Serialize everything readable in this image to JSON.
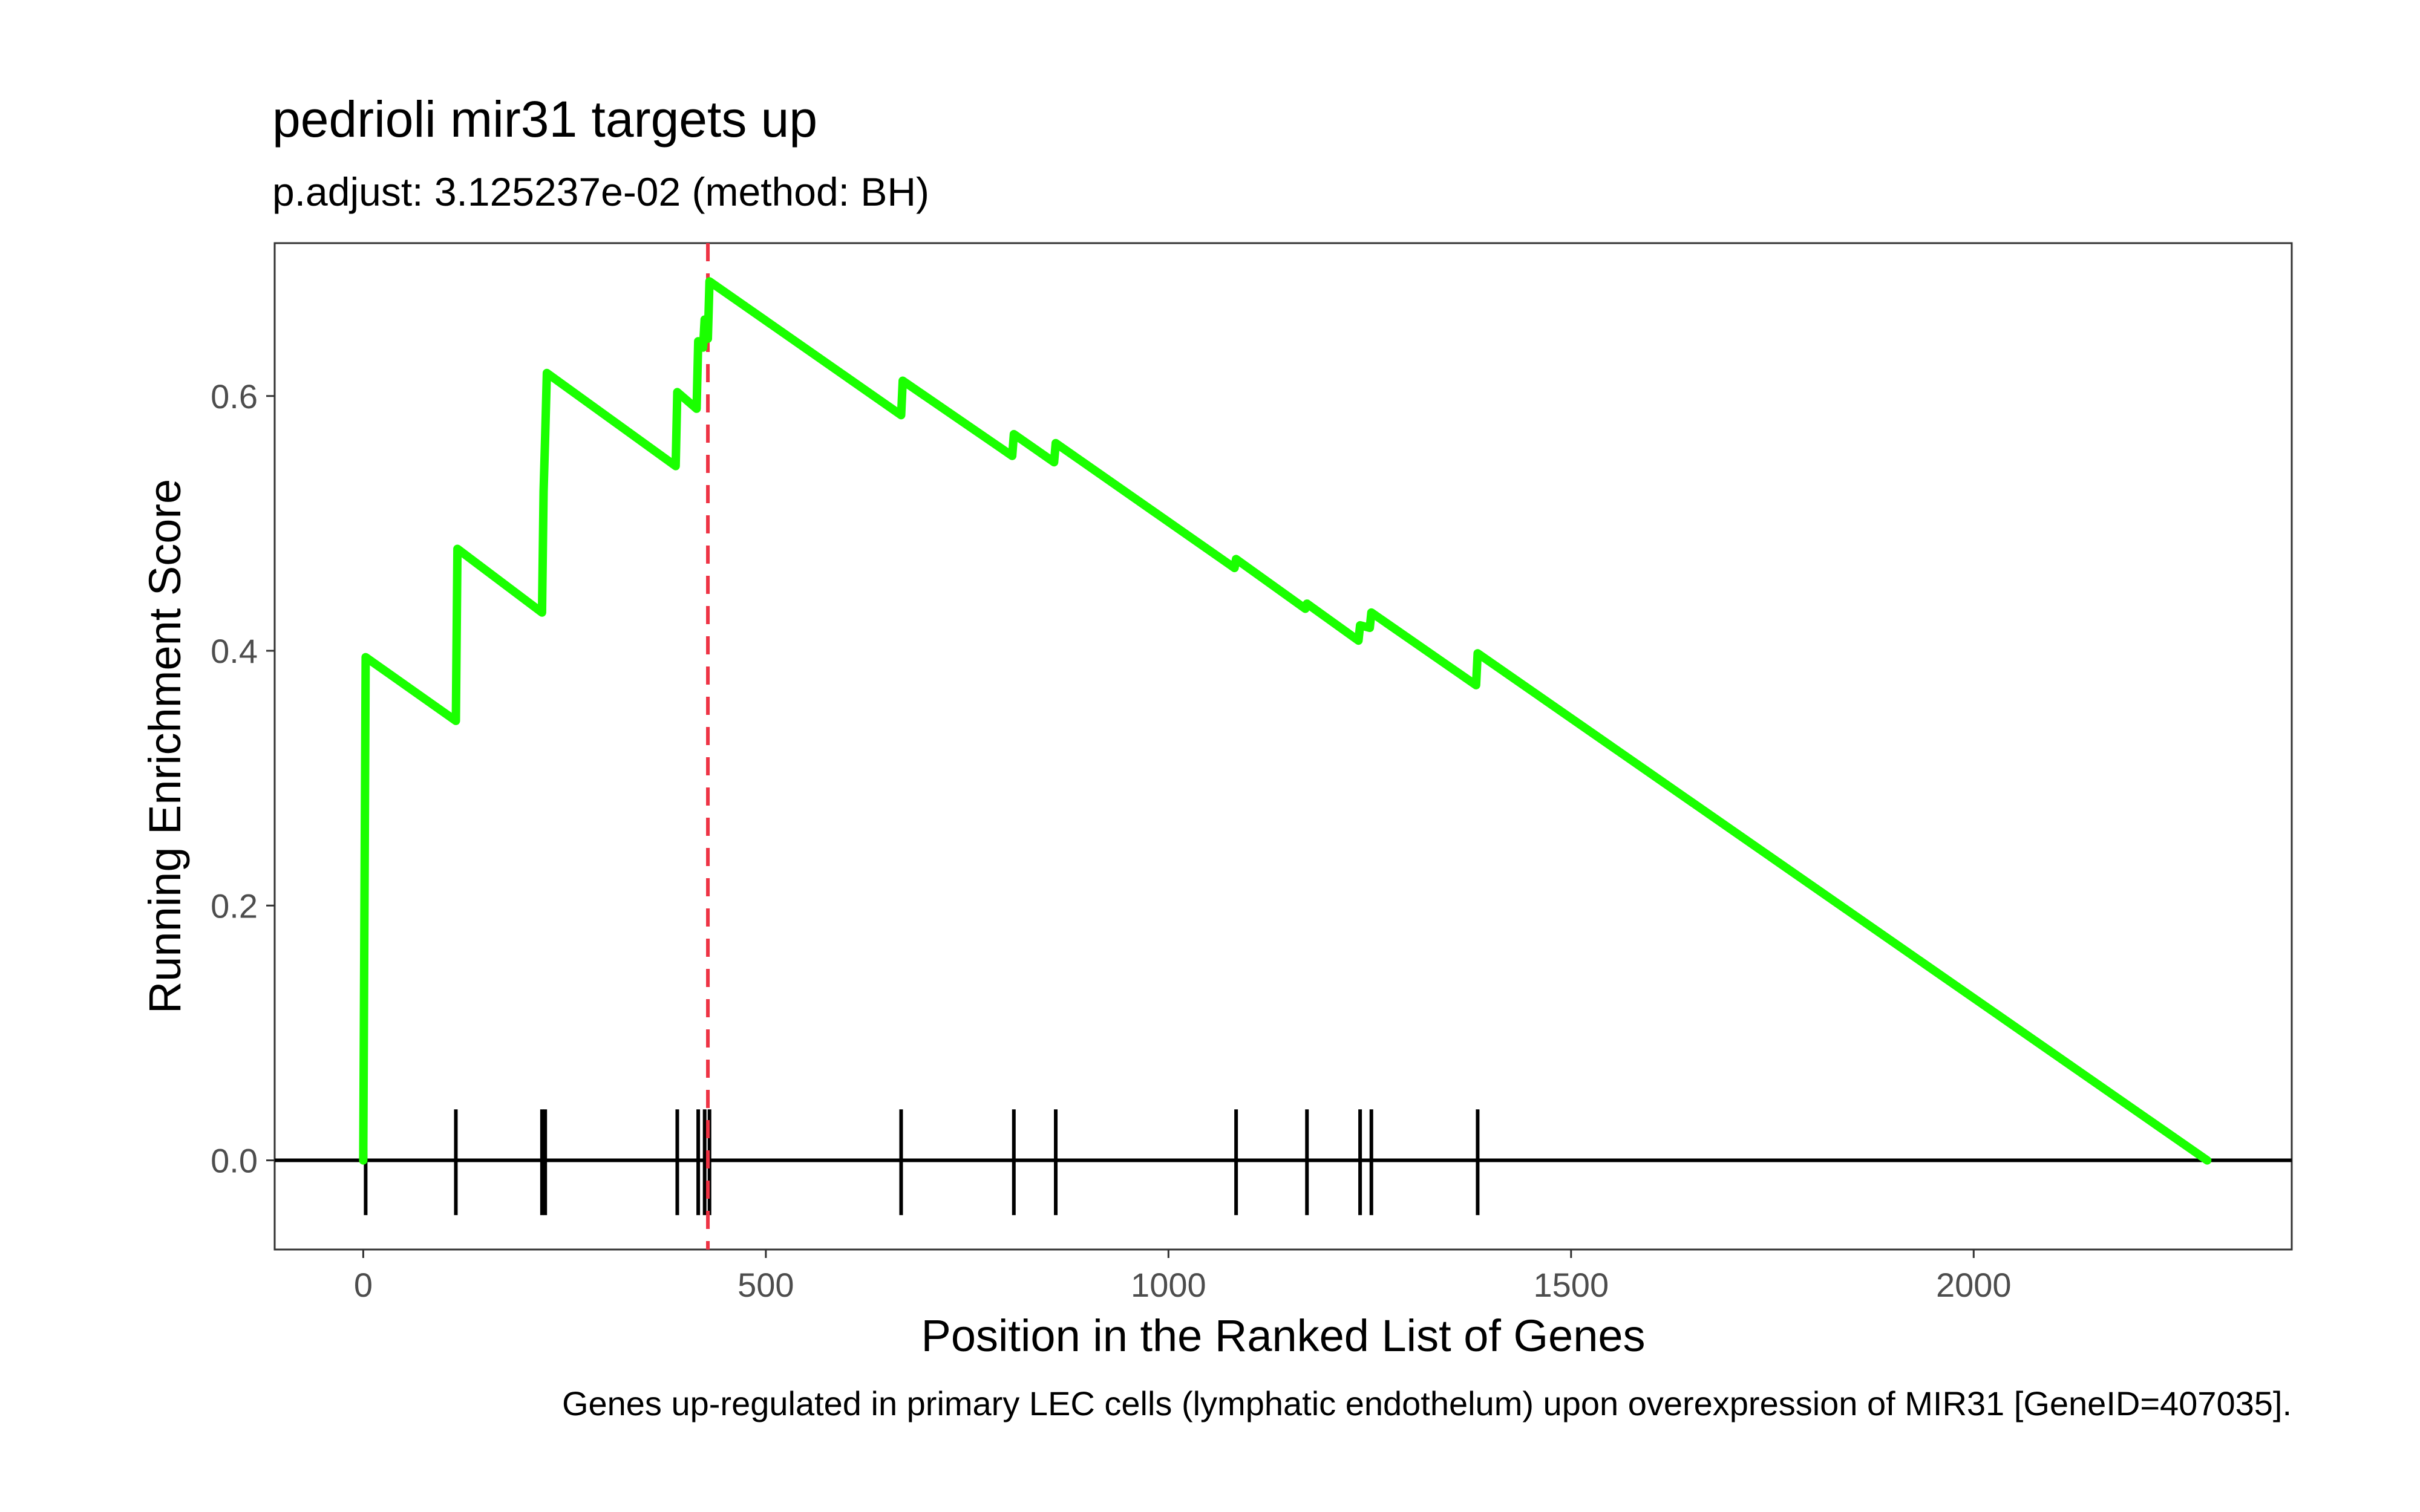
{
  "chart_data": {
    "type": "line",
    "title": "pedrioli mir31 targets up",
    "subtitle": "p.adjust: 3.125237e-02 (method: BH)",
    "caption": "Genes up-regulated in primary LEC cells (lymphatic endothelum) upon overexpression of MIR31 [GeneID=407035].",
    "xlabel": "Position in the Ranked List of Genes",
    "ylabel": "Running Enrichment Score",
    "xlim": [
      -110,
      2395
    ],
    "ylim": [
      -0.07,
      0.72
    ],
    "x_ticks": [
      0,
      500,
      1000,
      1500,
      2000
    ],
    "y_ticks": [
      0.0,
      0.2,
      0.4,
      0.6
    ],
    "x_tick_labels": [
      "0",
      "500",
      "1000",
      "1500",
      "2000"
    ],
    "y_tick_labels": [
      "0.0",
      "0.2",
      "0.4",
      "0.6"
    ],
    "grid": false,
    "colors": {
      "line": "#1aff00",
      "peak_marker": "#ee3344",
      "hits": "#000000",
      "panel_border": "#333333"
    },
    "peak_position": 428,
    "series": [
      {
        "x": [
          0,
          3,
          115,
          117,
          222,
          224,
          226,
          228,
          388,
          390,
          414,
          416,
          422,
          424,
          428,
          430,
          668,
          670,
          806,
          808,
          858,
          860,
          1082,
          1084,
          1170,
          1172,
          1236,
          1238,
          1250,
          1252,
          1382,
          1384,
          2290
        ],
        "y": [
          0.0,
          0.395,
          0.345,
          0.48,
          0.43,
          0.525,
          0.57,
          0.618,
          0.545,
          0.603,
          0.59,
          0.643,
          0.638,
          0.66,
          0.645,
          0.69,
          0.585,
          0.612,
          0.553,
          0.57,
          0.548,
          0.563,
          0.465,
          0.472,
          0.433,
          0.437,
          0.408,
          0.42,
          0.418,
          0.43,
          0.373,
          0.398,
          0.0
        ]
      }
    ],
    "hits": [
      3,
      115,
      222,
      226,
      390,
      416,
      424,
      430,
      668,
      808,
      860,
      1084,
      1172,
      1238,
      1252,
      1384
    ]
  }
}
